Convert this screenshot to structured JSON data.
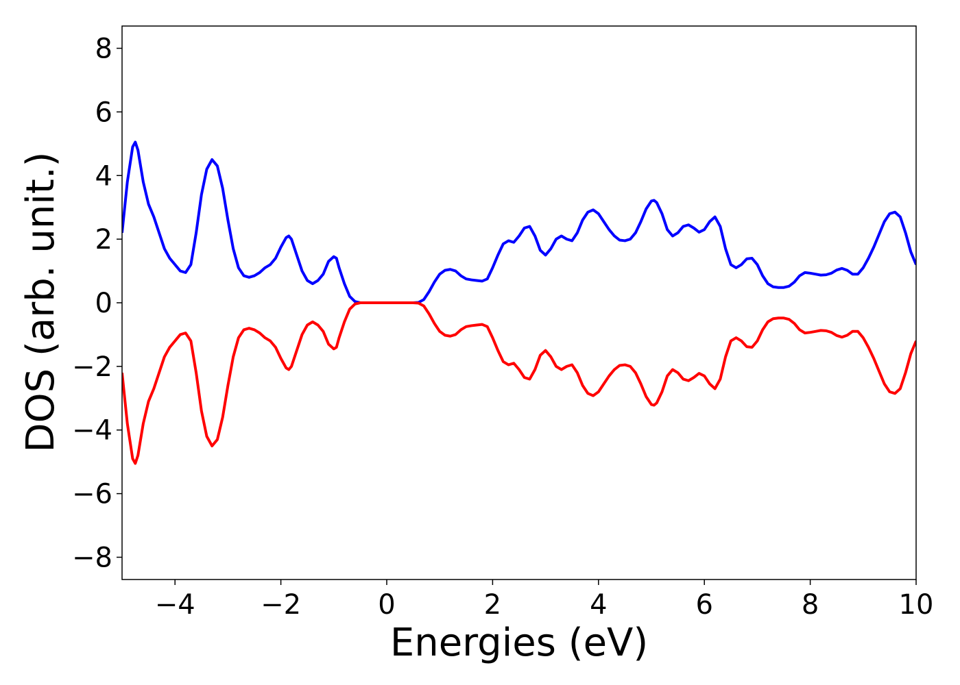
{
  "chart_data": {
    "type": "line",
    "xlabel": "Energies (eV)",
    "ylabel": "DOS (arb. unit.)",
    "x": [
      -5,
      -4.9,
      -4.8,
      -4.75,
      -4.7,
      -4.6,
      -4.5,
      -4.4,
      -4.3,
      -4.2,
      -4.1,
      -4.0,
      -3.9,
      -3.8,
      -3.7,
      -3.6,
      -3.5,
      -3.4,
      -3.3,
      -3.2,
      -3.1,
      -3.0,
      -2.9,
      -2.8,
      -2.7,
      -2.6,
      -2.5,
      -2.4,
      -2.3,
      -2.2,
      -2.1,
      -2.0,
      -1.9,
      -1.85,
      -1.8,
      -1.7,
      -1.6,
      -1.5,
      -1.4,
      -1.3,
      -1.2,
      -1.1,
      -1.0,
      -0.95,
      -0.9,
      -0.8,
      -0.7,
      -0.6,
      -0.5,
      0.5,
      0.6,
      0.7,
      0.8,
      0.9,
      1.0,
      1.1,
      1.2,
      1.3,
      1.4,
      1.5,
      1.6,
      1.7,
      1.8,
      1.9,
      2.0,
      2.1,
      2.2,
      2.3,
      2.4,
      2.5,
      2.6,
      2.7,
      2.8,
      2.9,
      3.0,
      3.1,
      3.2,
      3.3,
      3.4,
      3.5,
      3.6,
      3.7,
      3.8,
      3.9,
      4.0,
      4.1,
      4.2,
      4.3,
      4.4,
      4.5,
      4.6,
      4.7,
      4.8,
      4.9,
      5.0,
      5.05,
      5.1,
      5.2,
      5.3,
      5.4,
      5.5,
      5.6,
      5.7,
      5.8,
      5.9,
      6.0,
      6.1,
      6.2,
      6.3,
      6.4,
      6.5,
      6.6,
      6.7,
      6.8,
      6.9,
      7.0,
      7.1,
      7.2,
      7.3,
      7.4,
      7.5,
      7.6,
      7.7,
      7.8,
      7.9,
      8.0,
      8.1,
      8.2,
      8.3,
      8.4,
      8.5,
      8.6,
      8.7,
      8.8,
      8.9,
      9.0,
      9.1,
      9.2,
      9.3,
      9.4,
      9.5,
      9.6,
      9.7,
      9.8,
      9.9,
      10.0
    ],
    "series": [
      {
        "color": "#0000ff",
        "values": [
          2.2,
          3.8,
          4.9,
          5.05,
          4.8,
          3.8,
          3.1,
          2.7,
          2.2,
          1.7,
          1.4,
          1.2,
          1.0,
          0.95,
          1.2,
          2.2,
          3.4,
          4.2,
          4.5,
          4.3,
          3.6,
          2.6,
          1.7,
          1.1,
          0.85,
          0.8,
          0.85,
          0.95,
          1.1,
          1.2,
          1.4,
          1.75,
          2.05,
          2.1,
          2.0,
          1.5,
          1.0,
          0.7,
          0.6,
          0.7,
          0.9,
          1.3,
          1.45,
          1.4,
          1.1,
          0.6,
          0.2,
          0.04,
          0,
          0,
          0.01,
          0.1,
          0.35,
          0.65,
          0.9,
          1.02,
          1.05,
          1.0,
          0.85,
          0.75,
          0.72,
          0.7,
          0.68,
          0.75,
          1.1,
          1.5,
          1.85,
          1.95,
          1.9,
          2.1,
          2.35,
          2.4,
          2.1,
          1.65,
          1.5,
          1.7,
          2.0,
          2.1,
          2.0,
          1.95,
          2.2,
          2.6,
          2.85,
          2.92,
          2.8,
          2.55,
          2.3,
          2.1,
          1.97,
          1.95,
          2.0,
          2.2,
          2.55,
          2.95,
          3.2,
          3.22,
          3.15,
          2.8,
          2.3,
          2.1,
          2.2,
          2.4,
          2.45,
          2.35,
          2.22,
          2.3,
          2.55,
          2.7,
          2.4,
          1.7,
          1.2,
          1.1,
          1.2,
          1.38,
          1.4,
          1.2,
          0.85,
          0.6,
          0.5,
          0.48,
          0.48,
          0.52,
          0.65,
          0.85,
          0.95,
          0.93,
          0.9,
          0.87,
          0.88,
          0.93,
          1.03,
          1.08,
          1.02,
          0.9,
          0.9,
          1.1,
          1.4,
          1.75,
          2.15,
          2.55,
          2.8,
          2.85,
          2.7,
          2.2,
          1.6,
          1.2
        ]
      },
      {
        "color": "#ff0000",
        "values": [
          -2.2,
          -3.8,
          -4.9,
          -5.05,
          -4.8,
          -3.8,
          -3.1,
          -2.7,
          -2.2,
          -1.7,
          -1.4,
          -1.2,
          -1.0,
          -0.95,
          -1.2,
          -2.2,
          -3.4,
          -4.2,
          -4.5,
          -4.3,
          -3.6,
          -2.6,
          -1.7,
          -1.1,
          -0.85,
          -0.8,
          -0.85,
          -0.95,
          -1.1,
          -1.2,
          -1.4,
          -1.75,
          -2.05,
          -2.1,
          -2.0,
          -1.5,
          -1.0,
          -0.7,
          -0.6,
          -0.7,
          -0.9,
          -1.3,
          -1.45,
          -1.4,
          -1.1,
          -0.6,
          -0.2,
          -0.04,
          0,
          0,
          -0.01,
          -0.1,
          -0.35,
          -0.65,
          -0.9,
          -1.02,
          -1.05,
          -1.0,
          -0.85,
          -0.75,
          -0.72,
          -0.7,
          -0.68,
          -0.75,
          -1.1,
          -1.5,
          -1.85,
          -1.95,
          -1.9,
          -2.1,
          -2.35,
          -2.4,
          -2.1,
          -1.65,
          -1.5,
          -1.7,
          -2.0,
          -2.1,
          -2.0,
          -1.95,
          -2.2,
          -2.6,
          -2.85,
          -2.92,
          -2.8,
          -2.55,
          -2.3,
          -2.1,
          -1.97,
          -1.95,
          -2.0,
          -2.2,
          -2.55,
          -2.95,
          -3.2,
          -3.22,
          -3.15,
          -2.8,
          -2.3,
          -2.1,
          -2.2,
          -2.4,
          -2.45,
          -2.35,
          -2.22,
          -2.3,
          -2.55,
          -2.7,
          -2.4,
          -1.7,
          -1.2,
          -1.1,
          -1.2,
          -1.38,
          -1.4,
          -1.2,
          -0.85,
          -0.6,
          -0.5,
          -0.48,
          -0.48,
          -0.52,
          -0.65,
          -0.85,
          -0.95,
          -0.93,
          -0.9,
          -0.87,
          -0.88,
          -0.93,
          -1.03,
          -1.08,
          -1.02,
          -0.9,
          -0.9,
          -1.1,
          -1.4,
          -1.75,
          -2.15,
          -2.55,
          -2.8,
          -2.85,
          -2.7,
          -2.2,
          -1.6,
          -1.2
        ]
      }
    ],
    "xlim": [
      -5,
      10
    ],
    "xticks": [
      {
        "value": -4,
        "label": "−4"
      },
      {
        "value": -2,
        "label": "−2"
      },
      0,
      2,
      4,
      6,
      8,
      10
    ],
    "ylim": [
      -8.7,
      8.7
    ],
    "yticks": [
      {
        "value": -8,
        "label": "−8"
      },
      {
        "value": -6,
        "label": "−6"
      },
      {
        "value": -4,
        "label": "−4"
      },
      {
        "value": -2,
        "label": "−2"
      },
      0,
      2,
      4,
      6,
      8
    ]
  }
}
